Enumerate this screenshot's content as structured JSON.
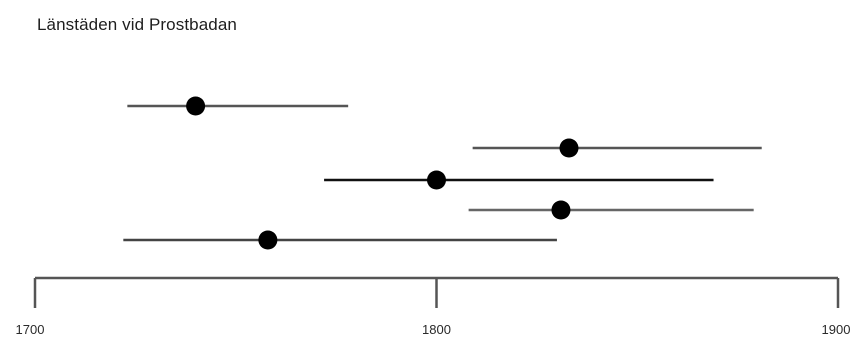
{
  "chart_data": {
    "type": "scatter",
    "title": "Länstäden vid Prostbadan",
    "xlabel": "",
    "ylabel": "",
    "xlim": [
      1700,
      1900
    ],
    "x_ticks": [
      "1700",
      "1800",
      "1900"
    ],
    "x_tick_values": [
      1700,
      1800,
      1900
    ],
    "grid": false,
    "legend": "none",
    "series": [
      {
        "x": 1740,
        "low": 1723,
        "high": 1778,
        "color": "#555555"
      },
      {
        "x": 1833,
        "low": 1809,
        "high": 1881,
        "color": "#555555"
      },
      {
        "x": 1800,
        "low": 1772,
        "high": 1869,
        "color": "#111111"
      },
      {
        "x": 1831,
        "low": 1808,
        "high": 1879,
        "color": "#666666"
      },
      {
        "x": 1758,
        "low": 1722,
        "high": 1830,
        "color": "#444444"
      }
    ]
  },
  "colors": {
    "axis": "#555555",
    "point": "#000000"
  }
}
